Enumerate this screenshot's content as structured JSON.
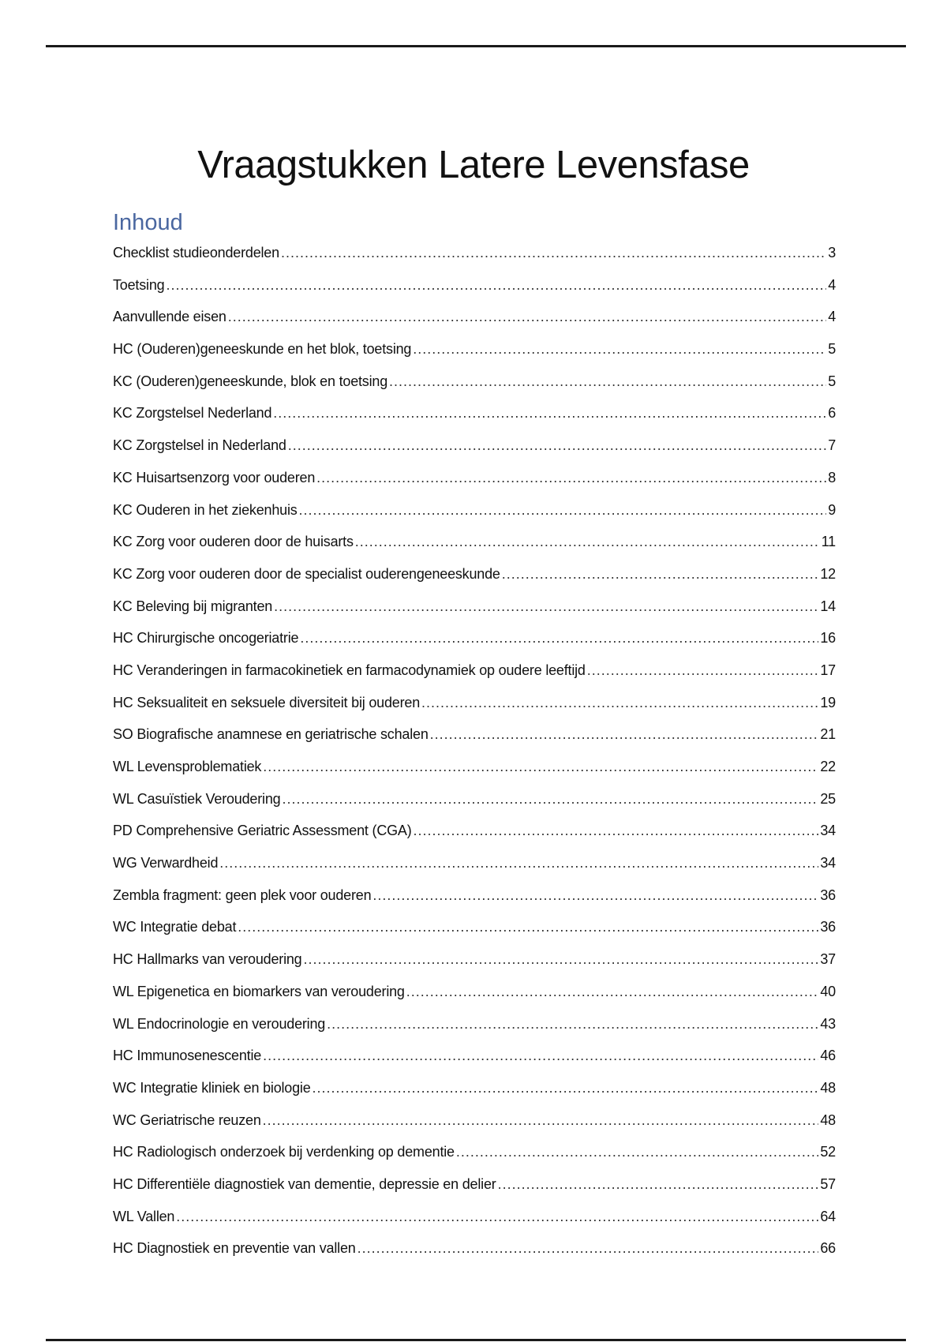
{
  "document": {
    "title": "Vraagstukken Latere Levensfase",
    "toc_heading": "Inhoud",
    "toc_heading_color": "#4a67a0",
    "toc": [
      {
        "label": "Checklist studieonderdelen",
        "page": "3"
      },
      {
        "label": "Toetsing",
        "page": "4"
      },
      {
        "label": "Aanvullende eisen",
        "page": "4"
      },
      {
        "label": "HC (Ouderen)geneeskunde en het blok, toetsing",
        "page": "5"
      },
      {
        "label": "KC (Ouderen)geneeskunde, blok en toetsing",
        "page": "5"
      },
      {
        "label": "KC Zorgstelsel Nederland",
        "page": "6"
      },
      {
        "label": "KC Zorgstelsel in Nederland",
        "page": "7"
      },
      {
        "label": "KC Huisartsenzorg voor ouderen",
        "page": "8"
      },
      {
        "label": "KC Ouderen in het ziekenhuis",
        "page": "9"
      },
      {
        "label": "KC Zorg voor ouderen door de huisarts",
        "page": "11"
      },
      {
        "label": "KC Zorg voor ouderen door de specialist ouderengeneeskunde",
        "page": "12"
      },
      {
        "label": "KC Beleving bij migranten",
        "page": "14"
      },
      {
        "label": "HC Chirurgische oncogeriatrie",
        "page": "16"
      },
      {
        "label": "HC Veranderingen in farmacokinetiek en farmacodynamiek op oudere leeftijd",
        "page": "17"
      },
      {
        "label": "HC Seksualiteit en seksuele diversiteit bij ouderen",
        "page": "19"
      },
      {
        "label": "SO Biografische anamnese en geriatrische schalen",
        "page": "21"
      },
      {
        "label": "WL Levensproblematiek",
        "page": "22"
      },
      {
        "label": "WL Casuïstiek Veroudering",
        "page": "25"
      },
      {
        "label": "PD Comprehensive Geriatric Assessment (CGA)",
        "page": "34"
      },
      {
        "label": "WG Verwardheid",
        "page": "34"
      },
      {
        "label": "Zembla fragment: geen plek voor ouderen",
        "page": "36"
      },
      {
        "label": "WC Integratie debat",
        "page": "36"
      },
      {
        "label": "HC Hallmarks van veroudering",
        "page": "37"
      },
      {
        "label": "WL Epigenetica en biomarkers van veroudering",
        "page": "40"
      },
      {
        "label": "WL Endocrinologie en veroudering",
        "page": "43"
      },
      {
        "label": "HC Immunosenescentie",
        "page": "46"
      },
      {
        "label": "WC Integratie kliniek en biologie",
        "page": "48"
      },
      {
        "label": "WC Geriatrische reuzen",
        "page": "48"
      },
      {
        "label": "HC Radiologisch onderzoek bij verdenking op dementie",
        "page": "52"
      },
      {
        "label": "HC Differentiële diagnostiek van dementie, depressie en delier",
        "page": "57"
      },
      {
        "label": "WL Vallen",
        "page": "64"
      },
      {
        "label": "HC Diagnostiek en preventie van vallen",
        "page": "66"
      }
    ]
  }
}
